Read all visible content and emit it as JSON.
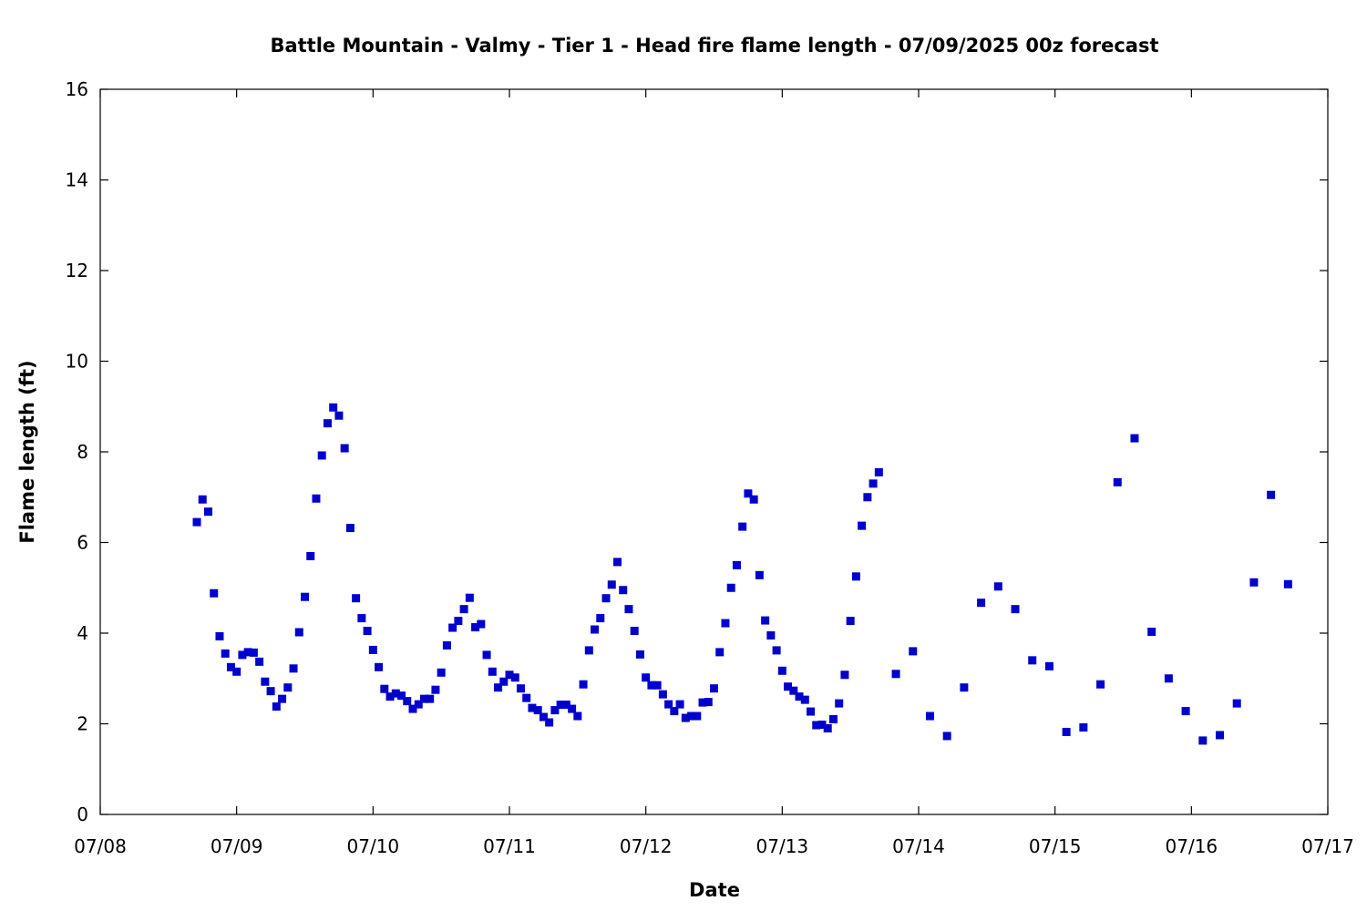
{
  "chart_data": {
    "type": "scatter",
    "title": "Battle Mountain - Valmy - Tier 1 - Head fire flame length - 07/09/2025 00z forecast",
    "xlabel": "Date",
    "ylabel": "Flame length (ft)",
    "ylim": [
      0,
      16
    ],
    "y_ticks": [
      0,
      2,
      4,
      6,
      8,
      10,
      12,
      14,
      16
    ],
    "x_ticks": [
      "07/08",
      "07/09",
      "07/10",
      "07/11",
      "07/12",
      "07/13",
      "07/14",
      "07/15",
      "07/16",
      "07/17"
    ],
    "x_range": [
      "07/08 00:00",
      "07/17 00:00"
    ],
    "grid": false,
    "legend": "none",
    "marker_color": "#0000cc",
    "series": [
      {
        "x": [
          "07/08 17:00",
          "07/08 18:00",
          "07/08 19:00",
          "07/08 20:00",
          "07/08 21:00",
          "07/08 22:00",
          "07/08 23:00",
          "07/09 00:00",
          "07/09 01:00",
          "07/09 02:00",
          "07/09 03:00",
          "07/09 04:00",
          "07/09 05:00",
          "07/09 06:00",
          "07/09 07:00",
          "07/09 08:00",
          "07/09 09:00",
          "07/09 10:00",
          "07/09 11:00",
          "07/09 12:00",
          "07/09 13:00",
          "07/09 14:00",
          "07/09 15:00",
          "07/09 16:00",
          "07/09 17:00",
          "07/09 18:00",
          "07/09 19:00",
          "07/09 20:00",
          "07/09 21:00",
          "07/09 22:00",
          "07/09 23:00",
          "07/10 00:00",
          "07/10 01:00",
          "07/10 02:00",
          "07/10 03:00",
          "07/10 04:00",
          "07/10 05:00",
          "07/10 06:00",
          "07/10 07:00",
          "07/10 08:00",
          "07/10 09:00",
          "07/10 10:00",
          "07/10 11:00",
          "07/10 12:00",
          "07/10 13:00",
          "07/10 14:00",
          "07/10 15:00",
          "07/10 16:00",
          "07/10 17:00",
          "07/10 18:00",
          "07/10 19:00",
          "07/10 20:00",
          "07/10 21:00",
          "07/10 22:00",
          "07/10 23:00",
          "07/11 00:00",
          "07/11 01:00",
          "07/11 02:00",
          "07/11 03:00",
          "07/11 04:00",
          "07/11 05:00",
          "07/11 06:00",
          "07/11 07:00",
          "07/11 08:00",
          "07/11 09:00",
          "07/11 10:00",
          "07/11 11:00",
          "07/11 12:00",
          "07/11 13:00",
          "07/11 14:00",
          "07/11 15:00",
          "07/11 16:00",
          "07/11 17:00",
          "07/11 18:00",
          "07/11 19:00",
          "07/11 20:00",
          "07/11 21:00",
          "07/11 22:00",
          "07/11 23:00",
          "07/12 00:00",
          "07/12 01:00",
          "07/12 02:00",
          "07/12 03:00",
          "07/12 04:00",
          "07/12 05:00",
          "07/12 06:00",
          "07/12 07:00",
          "07/12 08:00",
          "07/12 09:00",
          "07/12 10:00",
          "07/12 11:00",
          "07/12 12:00",
          "07/12 13:00",
          "07/12 14:00",
          "07/12 15:00",
          "07/12 16:00",
          "07/12 17:00",
          "07/12 18:00",
          "07/12 19:00",
          "07/12 20:00",
          "07/12 21:00",
          "07/12 22:00",
          "07/12 23:00",
          "07/13 00:00",
          "07/13 01:00",
          "07/13 02:00",
          "07/13 03:00",
          "07/13 04:00",
          "07/13 05:00",
          "07/13 06:00",
          "07/13 07:00",
          "07/13 08:00",
          "07/13 09:00",
          "07/13 10:00",
          "07/13 11:00",
          "07/13 12:00",
          "07/13 13:00",
          "07/13 14:00",
          "07/13 15:00",
          "07/13 16:00",
          "07/13 17:00",
          "07/13 20:00",
          "07/13 23:00",
          "07/14 02:00",
          "07/14 05:00",
          "07/14 08:00",
          "07/14 11:00",
          "07/14 14:00",
          "07/14 17:00",
          "07/14 20:00",
          "07/14 23:00",
          "07/15 02:00",
          "07/15 05:00",
          "07/15 08:00",
          "07/15 11:00",
          "07/15 14:00",
          "07/15 17:00",
          "07/15 20:00",
          "07/15 23:00",
          "07/16 02:00",
          "07/16 05:00",
          "07/16 08:00",
          "07/16 11:00",
          "07/16 14:00",
          "07/16 17:00"
        ],
        "values": [
          6.45,
          6.95,
          6.68,
          4.88,
          3.93,
          3.55,
          3.25,
          3.15,
          3.52,
          3.58,
          3.57,
          3.37,
          2.93,
          2.72,
          2.38,
          2.55,
          2.8,
          3.22,
          4.02,
          4.8,
          5.7,
          6.97,
          7.92,
          8.63,
          8.98,
          8.8,
          8.08,
          6.32,
          4.77,
          4.33,
          4.05,
          3.63,
          3.25,
          2.77,
          2.6,
          2.67,
          2.62,
          2.5,
          2.33,
          2.43,
          2.55,
          2.55,
          2.75,
          3.13,
          3.73,
          4.12,
          4.27,
          4.53,
          4.78,
          4.13,
          4.2,
          3.52,
          3.15,
          2.8,
          2.93,
          3.08,
          3.02,
          2.78,
          2.57,
          2.35,
          2.3,
          2.15,
          2.03,
          2.3,
          2.42,
          2.42,
          2.33,
          2.17,
          2.87,
          3.62,
          4.08,
          4.33,
          4.77,
          5.07,
          5.57,
          4.95,
          4.53,
          4.05,
          3.53,
          3.02,
          2.85,
          2.85,
          2.65,
          2.43,
          2.28,
          2.43,
          2.13,
          2.17,
          2.17,
          2.47,
          2.48,
          2.78,
          3.58,
          4.22,
          5.0,
          5.5,
          6.35,
          7.08,
          6.95,
          5.28,
          4.28,
          3.95,
          3.62,
          3.17,
          2.82,
          2.73,
          2.6,
          2.53,
          2.27,
          1.97,
          1.98,
          1.9,
          2.1,
          2.45,
          3.08,
          4.27,
          5.25,
          6.37,
          7.0,
          7.3,
          7.55,
          3.1,
          3.6,
          2.17,
          1.73,
          2.8,
          4.67,
          5.03,
          4.53,
          3.4,
          3.27,
          1.82,
          1.92,
          2.87,
          7.33,
          8.3,
          4.03,
          3.0,
          2.28,
          1.63,
          1.75,
          2.45,
          5.12,
          7.05,
          5.08
        ]
      }
    ]
  }
}
